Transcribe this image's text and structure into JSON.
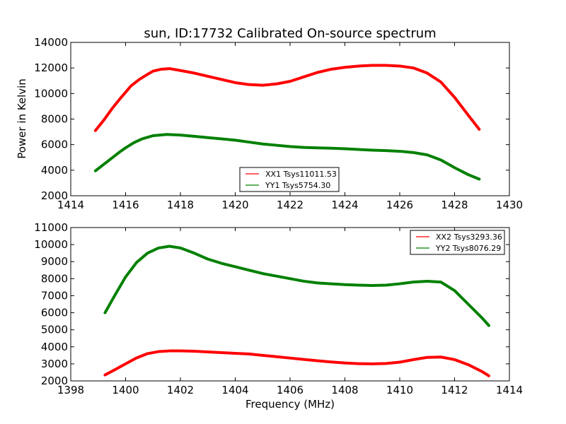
{
  "chart_data": [
    {
      "type": "line",
      "title": "sun, ID:17732 Calibrated On-source spectrum",
      "xlabel": "",
      "ylabel": "Power in Kelvin",
      "xlim": [
        1414,
        1430
      ],
      "ylim": [
        2000,
        14000
      ],
      "xticks": [
        1414,
        1416,
        1418,
        1420,
        1422,
        1424,
        1426,
        1428,
        1430
      ],
      "yticks": [
        2000,
        4000,
        6000,
        8000,
        10000,
        12000,
        14000
      ],
      "legend_position": "lower-center",
      "grid": false,
      "series": [
        {
          "name": "XX1 Tsys11011.53",
          "color": "#ff0000",
          "x": [
            1414.9,
            1415.2,
            1415.5,
            1415.8,
            1416.0,
            1416.2,
            1416.5,
            1416.8,
            1417.0,
            1417.3,
            1417.6,
            1418.0,
            1418.5,
            1419.0,
            1419.5,
            1420.0,
            1420.5,
            1421.0,
            1421.5,
            1422.0,
            1422.5,
            1423.0,
            1423.5,
            1424.0,
            1424.5,
            1425.0,
            1425.5,
            1426.0,
            1426.5,
            1427.0,
            1427.5,
            1428.0,
            1428.5,
            1428.9
          ],
          "values": [
            7100,
            7900,
            8800,
            9600,
            10100,
            10600,
            11100,
            11500,
            11750,
            11900,
            11950,
            11800,
            11600,
            11350,
            11100,
            10850,
            10700,
            10650,
            10750,
            10950,
            11300,
            11650,
            11900,
            12050,
            12150,
            12200,
            12200,
            12150,
            12000,
            11600,
            10900,
            9700,
            8300,
            7200
          ]
        },
        {
          "name": "YY1 Tsys5754.30",
          "color": "#008000",
          "x": [
            1414.9,
            1415.2,
            1415.5,
            1415.8,
            1416.0,
            1416.3,
            1416.6,
            1417.0,
            1417.5,
            1418.0,
            1418.5,
            1419.0,
            1419.5,
            1420.0,
            1420.5,
            1421.0,
            1421.5,
            1422.0,
            1422.5,
            1423.0,
            1423.5,
            1424.0,
            1424.5,
            1425.0,
            1425.5,
            1426.0,
            1426.5,
            1427.0,
            1427.5,
            1428.0,
            1428.5,
            1428.9
          ],
          "values": [
            3950,
            4450,
            4950,
            5450,
            5750,
            6150,
            6450,
            6700,
            6800,
            6750,
            6650,
            6550,
            6450,
            6350,
            6200,
            6050,
            5950,
            5850,
            5780,
            5750,
            5720,
            5680,
            5620,
            5570,
            5530,
            5480,
            5380,
            5200,
            4800,
            4200,
            3650,
            3300
          ]
        }
      ]
    },
    {
      "type": "line",
      "title": "",
      "xlabel": "Frequency (MHz)",
      "ylabel": "",
      "xlim": [
        1398,
        1414
      ],
      "ylim": [
        2000,
        11000
      ],
      "xticks": [
        1398,
        1400,
        1402,
        1404,
        1406,
        1408,
        1410,
        1412,
        1414
      ],
      "yticks": [
        2000,
        3000,
        4000,
        5000,
        6000,
        7000,
        8000,
        9000,
        10000,
        11000
      ],
      "legend_position": "upper-right",
      "grid": false,
      "series": [
        {
          "name": "XX2 Tsys3293.36",
          "color": "#ff0000",
          "x": [
            1399.25,
            1399.6,
            1400.0,
            1400.4,
            1400.8,
            1401.2,
            1401.6,
            1402.0,
            1402.5,
            1403.0,
            1403.5,
            1404.0,
            1404.5,
            1405.0,
            1405.5,
            1406.0,
            1406.5,
            1407.0,
            1407.5,
            1408.0,
            1408.5,
            1409.0,
            1409.5,
            1410.0,
            1410.5,
            1411.0,
            1411.5,
            1412.0,
            1412.5,
            1413.0,
            1413.25
          ],
          "values": [
            2350,
            2650,
            3000,
            3350,
            3600,
            3720,
            3760,
            3760,
            3740,
            3700,
            3660,
            3620,
            3580,
            3500,
            3420,
            3340,
            3260,
            3180,
            3110,
            3050,
            3010,
            3000,
            3020,
            3100,
            3250,
            3380,
            3400,
            3250,
            2950,
            2550,
            2300
          ]
        },
        {
          "name": "YY2 Tsys8076.29",
          "color": "#008000",
          "x": [
            1399.25,
            1399.6,
            1400.0,
            1400.4,
            1400.8,
            1401.2,
            1401.6,
            1402.0,
            1402.5,
            1403.0,
            1403.5,
            1404.0,
            1404.5,
            1405.0,
            1405.5,
            1406.0,
            1406.5,
            1407.0,
            1407.5,
            1408.0,
            1408.5,
            1409.0,
            1409.5,
            1410.0,
            1410.5,
            1411.0,
            1411.5,
            1412.0,
            1412.5,
            1413.0,
            1413.25
          ],
          "values": [
            6000,
            7000,
            8100,
            8950,
            9500,
            9800,
            9900,
            9800,
            9500,
            9150,
            8900,
            8700,
            8500,
            8300,
            8150,
            8000,
            7850,
            7750,
            7700,
            7650,
            7620,
            7600,
            7620,
            7700,
            7800,
            7850,
            7800,
            7300,
            6500,
            5700,
            5250
          ]
        }
      ]
    }
  ]
}
